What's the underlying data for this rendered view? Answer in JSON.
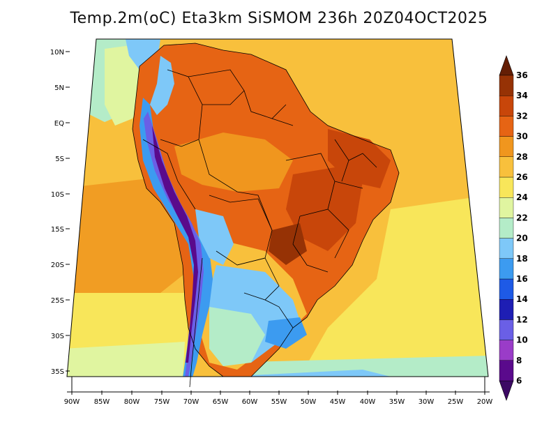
{
  "title": "Temp.2m(oC) Eta3km SiSMOM 236h 20Z04OCT2025",
  "map": {
    "region": "South America",
    "projection": "lambert-conic",
    "lon_range": [
      -90,
      -20
    ],
    "lat_range": [
      -37,
      12
    ],
    "lat_labels": [
      "10N",
      "5N",
      "EQ",
      "5S",
      "10S",
      "15S",
      "20S",
      "25S",
      "30S",
      "35S"
    ],
    "lon_labels": [
      "90W",
      "85W",
      "80W",
      "75W",
      "70W",
      "65W",
      "60W",
      "55W",
      "50W",
      "45W",
      "40W",
      "35W",
      "30W",
      "25W",
      "20W"
    ],
    "variable": "2 m air temperature",
    "units": "oC"
  },
  "colorbar": {
    "orientation": "vertical",
    "extend": "both",
    "labels": [
      "6",
      "8",
      "10",
      "12",
      "14",
      "16",
      "18",
      "20",
      "22",
      "24",
      "26",
      "28",
      "30",
      "32",
      "34",
      "36"
    ],
    "bins": [
      {
        "min": 6,
        "max": 8,
        "color": "#5a0a8c"
      },
      {
        "min": 8,
        "max": 10,
        "color": "#9a3cc8"
      },
      {
        "min": 10,
        "max": 12,
        "color": "#6a5fe6"
      },
      {
        "min": 12,
        "max": 14,
        "color": "#1e1eb4"
      },
      {
        "min": 14,
        "max": 16,
        "color": "#1e5ae6"
      },
      {
        "min": 16,
        "max": 18,
        "color": "#3c9bf0"
      },
      {
        "min": 18,
        "max": 20,
        "color": "#7ec8f8"
      },
      {
        "min": 20,
        "max": 22,
        "color": "#b4ecc8"
      },
      {
        "min": 22,
        "max": 24,
        "color": "#e0f5a0"
      },
      {
        "min": 24,
        "max": 26,
        "color": "#f8e65a"
      },
      {
        "min": 26,
        "max": 28,
        "color": "#f8c03c"
      },
      {
        "min": 28,
        "max": 30,
        "color": "#f0961e"
      },
      {
        "min": 30,
        "max": 32,
        "color": "#e66414"
      },
      {
        "min": 32,
        "max": 34,
        "color": "#c8460a"
      },
      {
        "min": 34,
        "max": 36,
        "color": "#963205"
      }
    ],
    "under_color": "#3c0a64",
    "over_color": "#641e05"
  }
}
